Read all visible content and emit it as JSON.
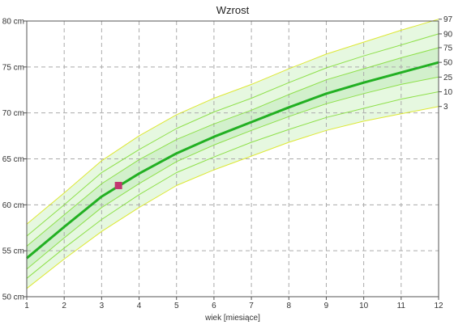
{
  "chart_data": {
    "type": "line",
    "title": "Wzrost",
    "xlabel": "wiek [miesiące]",
    "ylabel": "",
    "xlim": [
      1,
      12
    ],
    "ylim": [
      50,
      80
    ],
    "grid": true,
    "x_ticks": [
      "1",
      "2",
      "3",
      "4",
      "5",
      "6",
      "7",
      "8",
      "9",
      "10",
      "11",
      "12"
    ],
    "y_ticks": [
      "50 cm",
      "55 cm",
      "60 cm",
      "65 cm",
      "70 cm",
      "75 cm",
      "80 cm"
    ],
    "x": [
      1,
      2,
      3,
      4,
      5,
      6,
      7,
      8,
      9,
      10,
      11,
      12
    ],
    "percentiles": [
      {
        "name": "3",
        "values": [
          50.9,
          54.1,
          57.1,
          59.7,
          62.1,
          63.8,
          65.3,
          66.8,
          68.1,
          69.1,
          69.9,
          70.7
        ]
      },
      {
        "name": "10",
        "values": [
          52.0,
          55.3,
          58.4,
          61.1,
          63.5,
          65.2,
          66.8,
          68.2,
          69.5,
          70.5,
          71.5,
          72.3
        ]
      },
      {
        "name": "25",
        "values": [
          53.0,
          56.4,
          59.7,
          62.3,
          64.7,
          66.5,
          68.1,
          69.6,
          71.0,
          72.1,
          73.1,
          73.9
        ]
      },
      {
        "name": "50",
        "values": [
          54.2,
          57.6,
          60.9,
          63.4,
          65.6,
          67.4,
          69.0,
          70.6,
          72.1,
          73.3,
          74.4,
          75.5
        ]
      },
      {
        "name": "75",
        "values": [
          55.5,
          58.9,
          62.3,
          64.9,
          67.1,
          68.8,
          70.3,
          72.0,
          73.6,
          74.8,
          76.0,
          77.1
        ]
      },
      {
        "name": "90",
        "values": [
          56.6,
          60.0,
          63.5,
          66.0,
          68.3,
          70.1,
          71.6,
          73.3,
          74.9,
          76.2,
          77.4,
          78.6
        ]
      },
      {
        "name": "97",
        "values": [
          57.9,
          61.3,
          64.8,
          67.5,
          69.8,
          71.6,
          73.1,
          74.8,
          76.4,
          77.7,
          79.0,
          80.2
        ]
      }
    ],
    "measurements": [
      {
        "x": 3.45,
        "y": 62.1
      }
    ],
    "colors": {
      "outer_line": "#dde834",
      "inner_line": "#8ee04a",
      "median_line": "#22b022",
      "band_fill": "#e6f8e0",
      "inner_band_fill": "#d2f0cc",
      "marker": "#c23670",
      "grid": "#aaaaaa"
    }
  }
}
